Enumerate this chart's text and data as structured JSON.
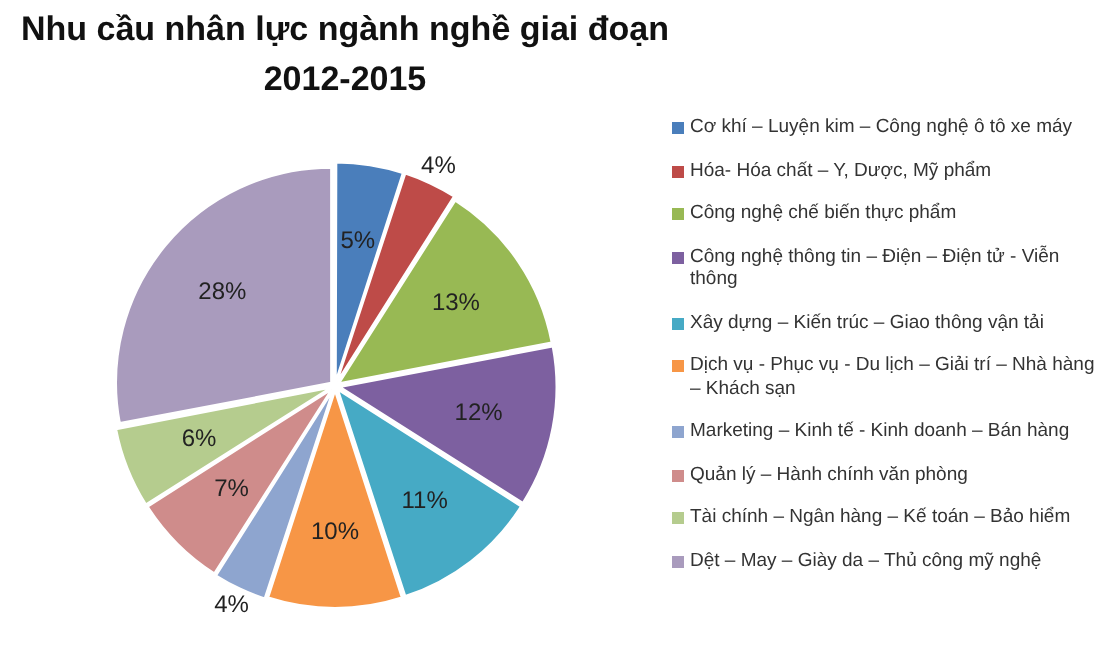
{
  "chart_data": {
    "type": "pie",
    "title": "Nhu cầu nhân lực ngành nghề giai đoạn 2012-2015",
    "categories": [
      "Cơ khí – Luyện kim – Công nghệ ô tô xe máy",
      "Hóa- Hóa chất – Y, Dược, Mỹ phẩm",
      "Công nghệ chế biến thực phẩm",
      "Công nghệ thông tin – Điện – Điện tử - Viễn thông",
      "Xây dựng – Kiến trúc – Giao thông vận tải",
      "Dịch vụ - Phục vụ - Du lịch – Giải trí – Nhà hàng – Khách sạn",
      "Marketing – Kinh tế - Kinh doanh – Bán hàng",
      "Quản lý – Hành chính văn phòng",
      "Tài chính – Ngân hàng – Kế toán – Bảo hiểm",
      "Dệt – May – Giày da – Thủ công mỹ nghệ"
    ],
    "values": [
      5,
      4,
      13,
      12,
      11,
      10,
      4,
      7,
      6,
      28
    ],
    "colors": [
      "#4a7ebb",
      "#be4b48",
      "#98b954",
      "#7d60a0",
      "#46aac5",
      "#f79646",
      "#8ea5cf",
      "#cf8c8b",
      "#b5cc8e",
      "#a99bbd"
    ],
    "value_labels": [
      "5%",
      "4%",
      "13%",
      "12%",
      "11%",
      "10%",
      "4%",
      "7%",
      "6%",
      "28%"
    ],
    "legend": "right"
  }
}
